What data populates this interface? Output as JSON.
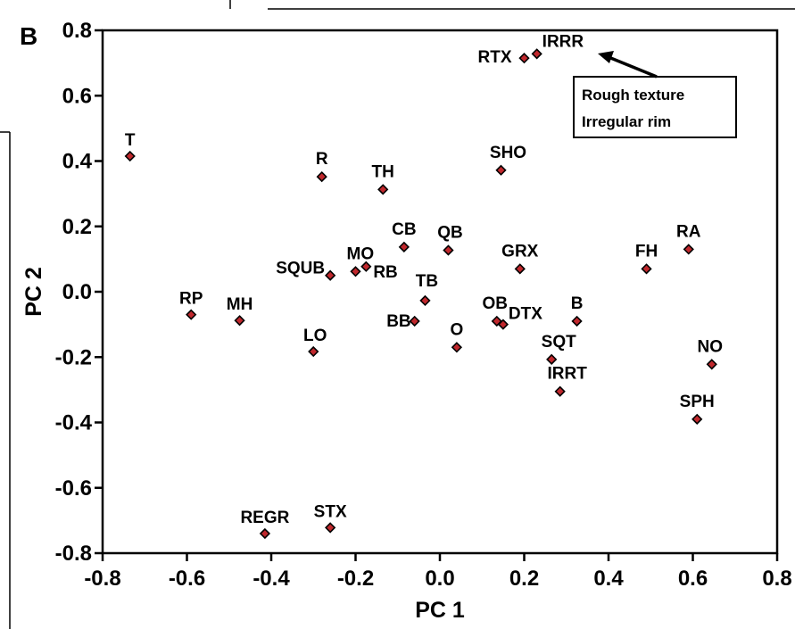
{
  "panel_label": "B",
  "chart_data": {
    "type": "scatter",
    "xlabel": "PC 1",
    "ylabel": "PC 2",
    "xlim": [
      -0.8,
      0.8
    ],
    "ylim": [
      -0.8,
      0.8
    ],
    "x_ticks": [
      "-0.8",
      "-0.6",
      "-0.4",
      "-0.2",
      "0.0",
      "0.2",
      "0.4",
      "0.6",
      "0.8"
    ],
    "y_ticks": [
      "0.8",
      "0.6",
      "0.4",
      "0.2",
      "0.0",
      "-0.2",
      "-0.4",
      "-0.6",
      "-0.8"
    ],
    "grid": false,
    "marker_color": "#c0282d",
    "points": [
      {
        "label": "T",
        "x": -0.735,
        "y": 0.415
      },
      {
        "label": "RP",
        "x": -0.59,
        "y": -0.07
      },
      {
        "label": "MH",
        "x": -0.475,
        "y": -0.088
      },
      {
        "label": "REGR",
        "x": -0.415,
        "y": -0.74
      },
      {
        "label": "STX",
        "x": -0.26,
        "y": -0.722
      },
      {
        "label": "LO",
        "x": -0.3,
        "y": -0.183
      },
      {
        "label": "R",
        "x": -0.28,
        "y": 0.352
      },
      {
        "label": "SQUB",
        "x": -0.26,
        "y": 0.05
      },
      {
        "label": "MO",
        "x": -0.2,
        "y": 0.062
      },
      {
        "label": "RB",
        "x": -0.175,
        "y": 0.077
      },
      {
        "label": "TH",
        "x": -0.135,
        "y": 0.313
      },
      {
        "label": "CB",
        "x": -0.085,
        "y": 0.137
      },
      {
        "label": "BB",
        "x": -0.06,
        "y": -0.09
      },
      {
        "label": "TB",
        "x": -0.035,
        "y": -0.027
      },
      {
        "label": "QB",
        "x": 0.02,
        "y": 0.127
      },
      {
        "label": "O",
        "x": 0.04,
        "y": -0.17
      },
      {
        "label": "OB",
        "x": 0.135,
        "y": -0.09
      },
      {
        "label": "DTX",
        "x": 0.15,
        "y": -0.1
      },
      {
        "label": "SHO",
        "x": 0.145,
        "y": 0.372
      },
      {
        "label": "GRX",
        "x": 0.19,
        "y": 0.07
      },
      {
        "label": "RTX",
        "x": 0.2,
        "y": 0.715
      },
      {
        "label": "IRRR",
        "x": 0.23,
        "y": 0.728
      },
      {
        "label": "SQT",
        "x": 0.265,
        "y": -0.207
      },
      {
        "label": "IRRT",
        "x": 0.285,
        "y": -0.305
      },
      {
        "label": "B",
        "x": 0.325,
        "y": -0.09
      },
      {
        "label": "FH",
        "x": 0.49,
        "y": 0.07
      },
      {
        "label": "RA",
        "x": 0.59,
        "y": 0.13
      },
      {
        "label": "SPH",
        "x": 0.61,
        "y": -0.39
      },
      {
        "label": "NO",
        "x": 0.645,
        "y": -0.222
      }
    ],
    "annotations": [
      {
        "lines": [
          "Rough texture",
          "Irregular rim"
        ],
        "points_to": "IRRR"
      }
    ]
  }
}
